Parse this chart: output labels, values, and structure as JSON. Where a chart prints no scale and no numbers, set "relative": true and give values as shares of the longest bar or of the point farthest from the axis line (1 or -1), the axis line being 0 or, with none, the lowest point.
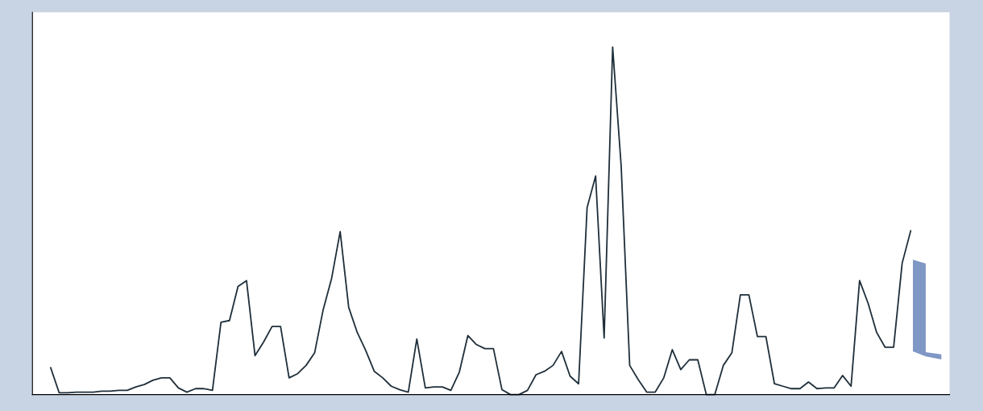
{
  "chart_data": {
    "type": "line",
    "relative": true,
    "categories": [
      null,
      null,
      null,
      null,
      null,
      null,
      null,
      null,
      null,
      null,
      null,
      null,
      null,
      null,
      null,
      null,
      null,
      null,
      null,
      null,
      null,
      null,
      null,
      null,
      null,
      null,
      null,
      null,
      null,
      null,
      null,
      null,
      null,
      null,
      null,
      null,
      null,
      null,
      null,
      null,
      null,
      null,
      null,
      null,
      null,
      null,
      null,
      null,
      null,
      null,
      null,
      null,
      null,
      null,
      null,
      null,
      null,
      null,
      null,
      null,
      null,
      null,
      null,
      null,
      null,
      null,
      null,
      null,
      null,
      null,
      null,
      null,
      null,
      null,
      null,
      null,
      null,
      null,
      null,
      null,
      null,
      null,
      null,
      null,
      null,
      null,
      null,
      null,
      null,
      null,
      null,
      null,
      null,
      null,
      null,
      null,
      null,
      null,
      null,
      null,
      null,
      null
    ],
    "series": [
      {
        "color": "#1f2f3a",
        "values": [
          0.077,
          0.005,
          0.005,
          0.007,
          0.007,
          0.007,
          0.01,
          0.01,
          0.012,
          0.012,
          0.022,
          0.029,
          0.041,
          0.048,
          0.048,
          0.019,
          0.007,
          0.017,
          0.017,
          0.012,
          0.208,
          0.213,
          0.311,
          0.328,
          0.112,
          0.151,
          0.196,
          0.196,
          0.048,
          0.06,
          0.084,
          0.12,
          0.244,
          0.335,
          0.469,
          0.251,
          0.179,
          0.127,
          0.067,
          0.048,
          0.024,
          0.014,
          0.007,
          0.16,
          0.019,
          0.022,
          0.022,
          0.012,
          0.065,
          0.17,
          0.144,
          0.132,
          0.132,
          0.014,
          0,
          0,
          0.012,
          0.057,
          0.067,
          0.084,
          0.124,
          0.053,
          0.031,
          0.538,
          0.629,
          0.163,
          1.0,
          0.658,
          0.084,
          0.043,
          0.007,
          0.007,
          0.048,
          0.129,
          0.072,
          0.1,
          0.1,
          0,
          0,
          0.084,
          0.12,
          0.287,
          0.287,
          0.167,
          0.167,
          0.031,
          0.024,
          0.017,
          0.017,
          0.036,
          0.017,
          0.019,
          0.019,
          0.055,
          0.024,
          0.328,
          0.263,
          0.179,
          0.136,
          0.136,
          0.378,
          0.471
        ]
      }
    ]
  }
}
